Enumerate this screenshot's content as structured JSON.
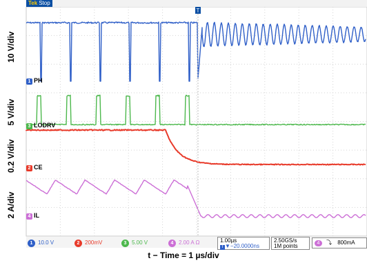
{
  "status": {
    "brand": "Tek",
    "state": "Stop"
  },
  "y_labels": [
    {
      "text": "10 V/div"
    },
    {
      "text": "5 V/div"
    },
    {
      "text": "0.2 V/div"
    },
    {
      "text": "2 A/div"
    }
  ],
  "channels": [
    {
      "id": "1",
      "name": "PH",
      "color": "#2f5fc8"
    },
    {
      "id": "3",
      "name": "LODRV",
      "color": "#4cb84c"
    },
    {
      "id": "2",
      "name": "CE",
      "color": "#e83a2a"
    },
    {
      "id": "4",
      "name": "IL",
      "color": "#cc6fd6"
    }
  ],
  "readouts": {
    "ch1": {
      "num": "1",
      "value": "10.0 V"
    },
    "ch2": {
      "num": "2",
      "value": "200mV"
    },
    "ch3": {
      "num": "3",
      "value": "5.00 V"
    },
    "ch4": {
      "num": "4",
      "value": "2.00 A Ω"
    },
    "timebase": "1.00µs",
    "delay": "▼−20.0000ns",
    "delay_marker": "T",
    "sample_rate": "2.50GS/s",
    "record_length": "1M points",
    "trigger": {
      "num": "4",
      "slope": "⤵",
      "level": "800mA"
    }
  },
  "trigger_marker": "T",
  "caption": "t − Time = 1 µs/div"
}
